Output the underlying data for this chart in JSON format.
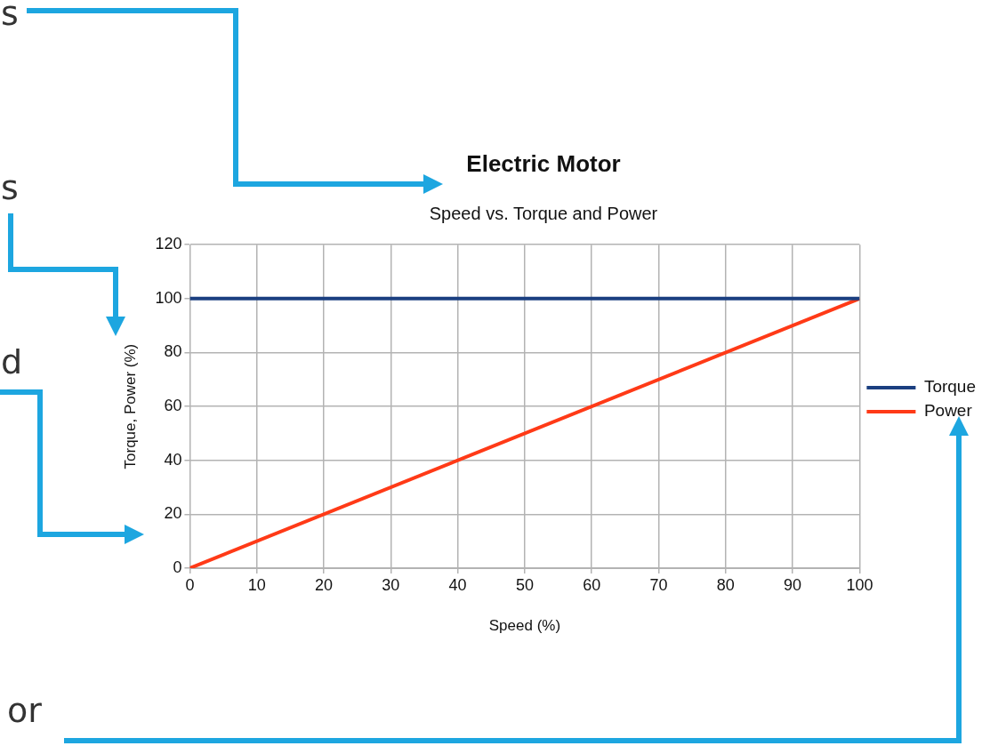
{
  "chart_data": {
    "type": "line",
    "title": "Electric Motor",
    "subtitle": "Speed vs. Torque and Power",
    "xlabel": "Speed (%)",
    "ylabel": "Torque, Power (%)",
    "x": [
      0,
      100
    ],
    "series": [
      {
        "name": "Torque",
        "color": "#1b3f80",
        "values": [
          100,
          100
        ]
      },
      {
        "name": "Power",
        "color": "#ff3a17",
        "values": [
          0,
          100
        ]
      }
    ],
    "xlim": [
      0,
      100
    ],
    "xticks": [
      0,
      10,
      20,
      30,
      40,
      50,
      60,
      70,
      80,
      90,
      100
    ],
    "ylim": [
      0,
      120
    ],
    "yticks": [
      0,
      20,
      40,
      60,
      80,
      100,
      120
    ],
    "grid": true,
    "legend": "right",
    "marker": "none",
    "line_style": "solid",
    "annotations": [
      "s",
      "s",
      "d",
      "or"
    ]
  }
}
